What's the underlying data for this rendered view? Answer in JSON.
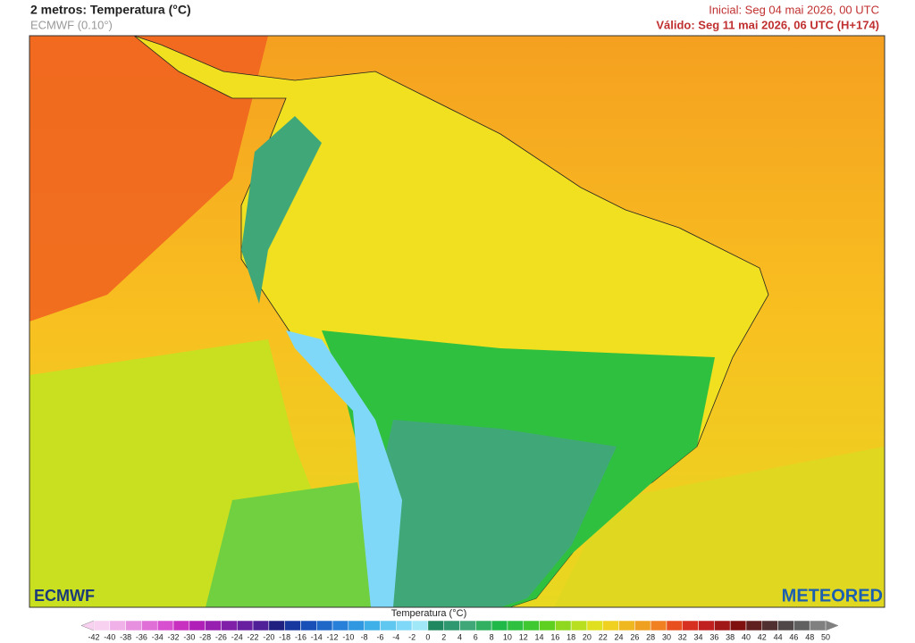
{
  "header": {
    "title": "2 metros: Temperatura (°C)",
    "subtitle": "ECMWF (0.10°)",
    "initial": "Inicial: Seg 04 mai 2026, 00 UTC",
    "valid": "Válido: Seg 11 mai 2026, 06 UTC (H+174)"
  },
  "logos": {
    "left": "ECMWF",
    "right": "METEORED"
  },
  "colorbar": {
    "title": "Temperatura (°C)",
    "ticks": [
      -42,
      -40,
      -38,
      -36,
      -34,
      -32,
      -30,
      -28,
      -26,
      -24,
      -22,
      -20,
      -18,
      -16,
      -14,
      -12,
      -10,
      -8,
      -6,
      -4,
      -2,
      0,
      2,
      4,
      6,
      8,
      10,
      12,
      14,
      16,
      18,
      20,
      22,
      24,
      26,
      28,
      30,
      32,
      34,
      36,
      38,
      40,
      42,
      44,
      46,
      48,
      50
    ],
    "colors": [
      "#f8d0f0",
      "#f0b0e8",
      "#e890e0",
      "#e070d8",
      "#d850d0",
      "#c830c0",
      "#b020b8",
      "#9820b0",
      "#8020a8",
      "#6820a0",
      "#502098",
      "#202080",
      "#1838a0",
      "#1850b8",
      "#2068c8",
      "#2880d8",
      "#3098e0",
      "#40b0e8",
      "#60c8f0",
      "#80d8f8",
      "#a0e8f8",
      "#208860",
      "#309870",
      "#40a878",
      "#30b060",
      "#20b848",
      "#30c040",
      "#40c830",
      "#60d020",
      "#90d820",
      "#b8e020",
      "#e0e020",
      "#f0d020",
      "#f0b820",
      "#f0a020",
      "#f08020",
      "#e85020",
      "#d83020",
      "#c02020",
      "#a01818",
      "#801010",
      "#602020",
      "#503030",
      "#504848",
      "#606060",
      "#808080"
    ]
  }
}
